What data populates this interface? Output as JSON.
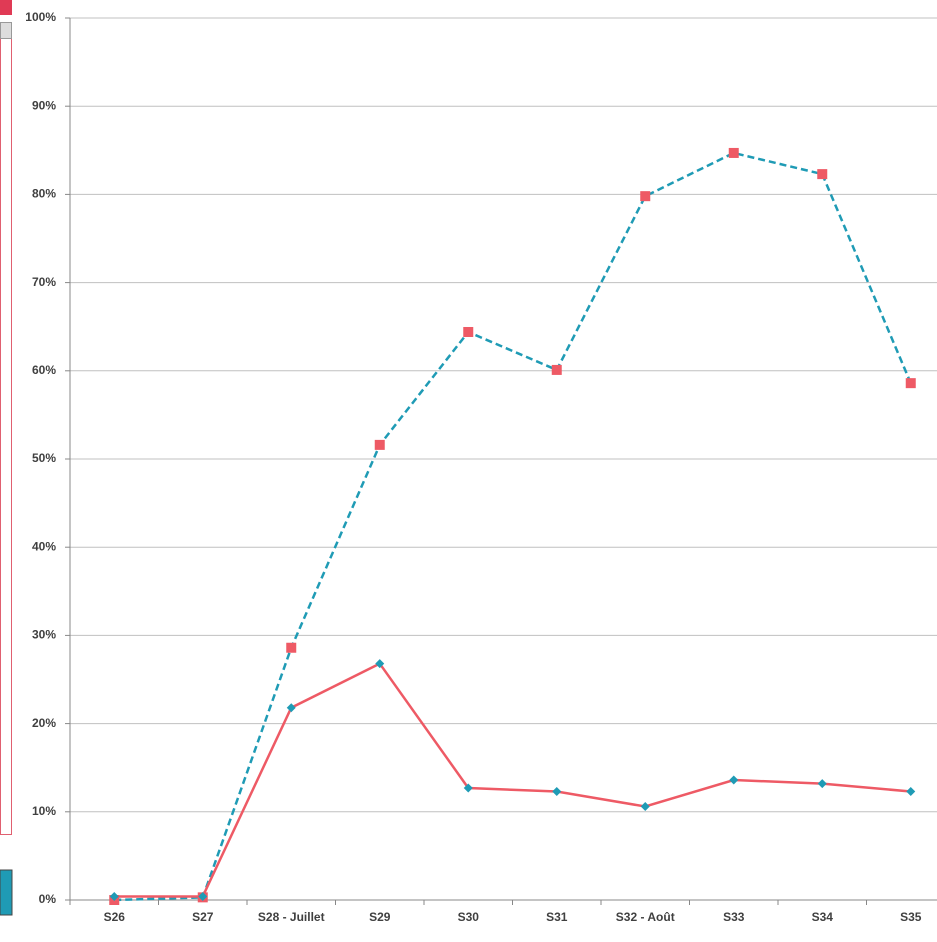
{
  "chart_data": {
    "type": "line",
    "categories": [
      "S26",
      "S27",
      "S28 - Juillet",
      "S29",
      "S30",
      "S31",
      "S32 - Août",
      "S33",
      "S34",
      "S35"
    ],
    "series": [
      {
        "color": "#1f9bb5",
        "marker_color": "#ee5a65",
        "marker": "square",
        "dashed": true,
        "values": [
          0,
          0.3,
          28.6,
          51.6,
          64.4,
          60.1,
          79.8,
          84.7,
          82.3,
          58.6
        ]
      },
      {
        "color": "#ee5a65",
        "marker_color": "#1f9bb5",
        "marker": "diamond",
        "dashed": false,
        "values": [
          0.4,
          0.4,
          21.8,
          26.8,
          12.7,
          12.3,
          10.6,
          13.6,
          13.2,
          12.3
        ]
      }
    ],
    "ylim": [
      0,
      100
    ],
    "yticks": [
      {
        "value": 0,
        "label": "0%"
      },
      {
        "value": 10,
        "label": "10%"
      },
      {
        "value": 20,
        "label": "20%"
      },
      {
        "value": 30,
        "label": "30%"
      },
      {
        "value": 40,
        "label": "40%"
      },
      {
        "value": 50,
        "label": "50%"
      },
      {
        "value": 60,
        "label": "60%"
      },
      {
        "value": 70,
        "label": "70%"
      },
      {
        "value": 80,
        "label": "80%"
      },
      {
        "value": 90,
        "label": "90%"
      },
      {
        "value": 100,
        "label": "100%"
      }
    ],
    "grid": true
  }
}
